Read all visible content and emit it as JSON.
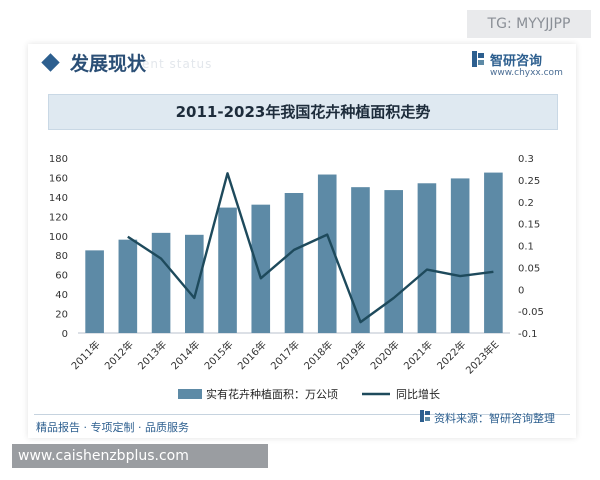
{
  "watermark_tag": "TG: MYYJJPP",
  "section": {
    "title": "发展现状",
    "subtitle": "ent status"
  },
  "brand": {
    "name": "智研咨询",
    "url": "www.chyxx.com"
  },
  "footer": {
    "left": "精品报告 · 专项定制 · 品质服务",
    "source": "资料来源：智研咨询整理"
  },
  "site_banner": "www.caishenzbplus.com",
  "colors": {
    "bar": "#5d8aa6",
    "line": "#1e4a5c",
    "accent": "#2d5f8f",
    "banner": "#dfe9f1"
  },
  "chart_data": {
    "type": "bar+line",
    "title": "2011-2023年我国花卉种植面积走势",
    "categories": [
      "2011年",
      "2012年",
      "2013年",
      "2014年",
      "2015年",
      "2016年",
      "2017年",
      "2018年",
      "2019年",
      "2020年",
      "2021年",
      "2022年",
      "2023年E"
    ],
    "series": [
      {
        "name": "实有花卉种植面积：万公顷",
        "type": "bar",
        "axis": "left",
        "values": [
          85,
          96,
          103,
          101,
          129,
          132,
          144,
          163,
          150,
          147,
          154,
          159,
          165
        ]
      },
      {
        "name": "同比增长",
        "type": "line",
        "axis": "right",
        "values": [
          null,
          0.12,
          0.07,
          -0.02,
          0.265,
          0.025,
          0.09,
          0.125,
          -0.075,
          -0.02,
          0.045,
          0.03,
          0.04
        ]
      }
    ],
    "y_left": {
      "min": 0,
      "max": 180,
      "ticks": [
        0,
        20,
        40,
        60,
        80,
        100,
        120,
        140,
        160,
        180
      ]
    },
    "y_right": {
      "min": -0.1,
      "max": 0.3,
      "ticks": [
        "-0.1",
        "-0.05",
        "0",
        "0.05",
        "0.1",
        "0.15",
        "0.2",
        "0.25",
        "0.3"
      ]
    },
    "legend_position": "bottom",
    "grid": false
  }
}
